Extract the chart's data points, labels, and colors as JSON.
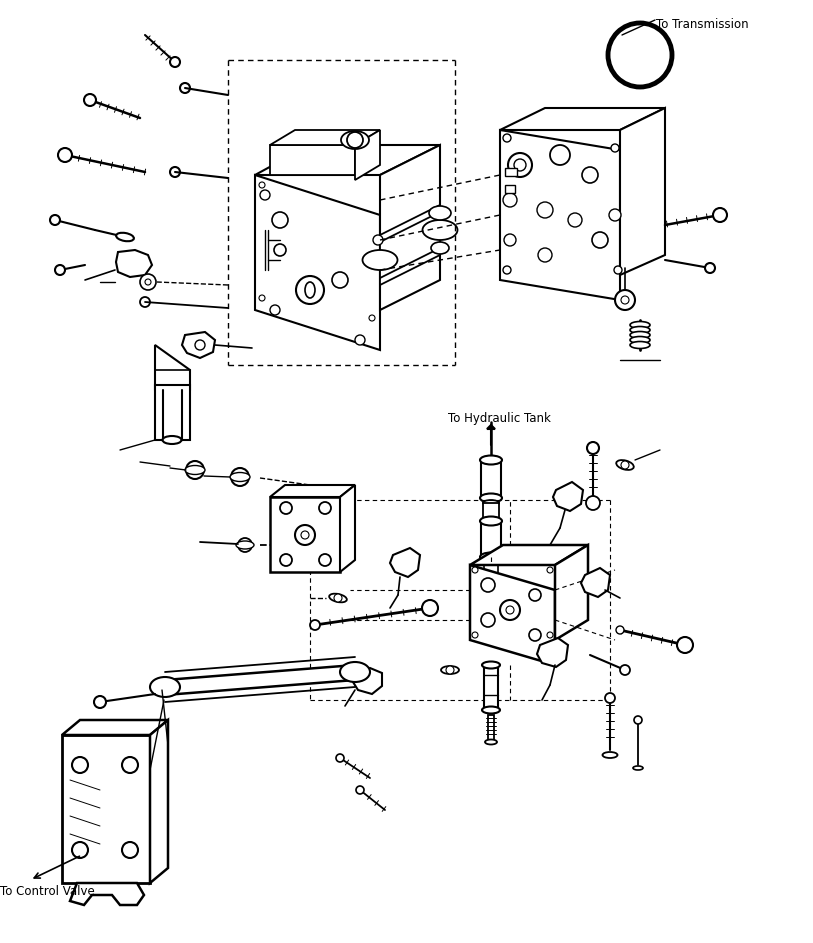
{
  "background_color": "#ffffff",
  "line_color": "#000000",
  "label_to_transmission": "To Transmission",
  "label_to_hydraulic_tank": "To Hydraulic Tank",
  "label_to_control_valve": "To Control Valve",
  "figsize": [
    8.13,
    9.43
  ],
  "dpi": 100
}
